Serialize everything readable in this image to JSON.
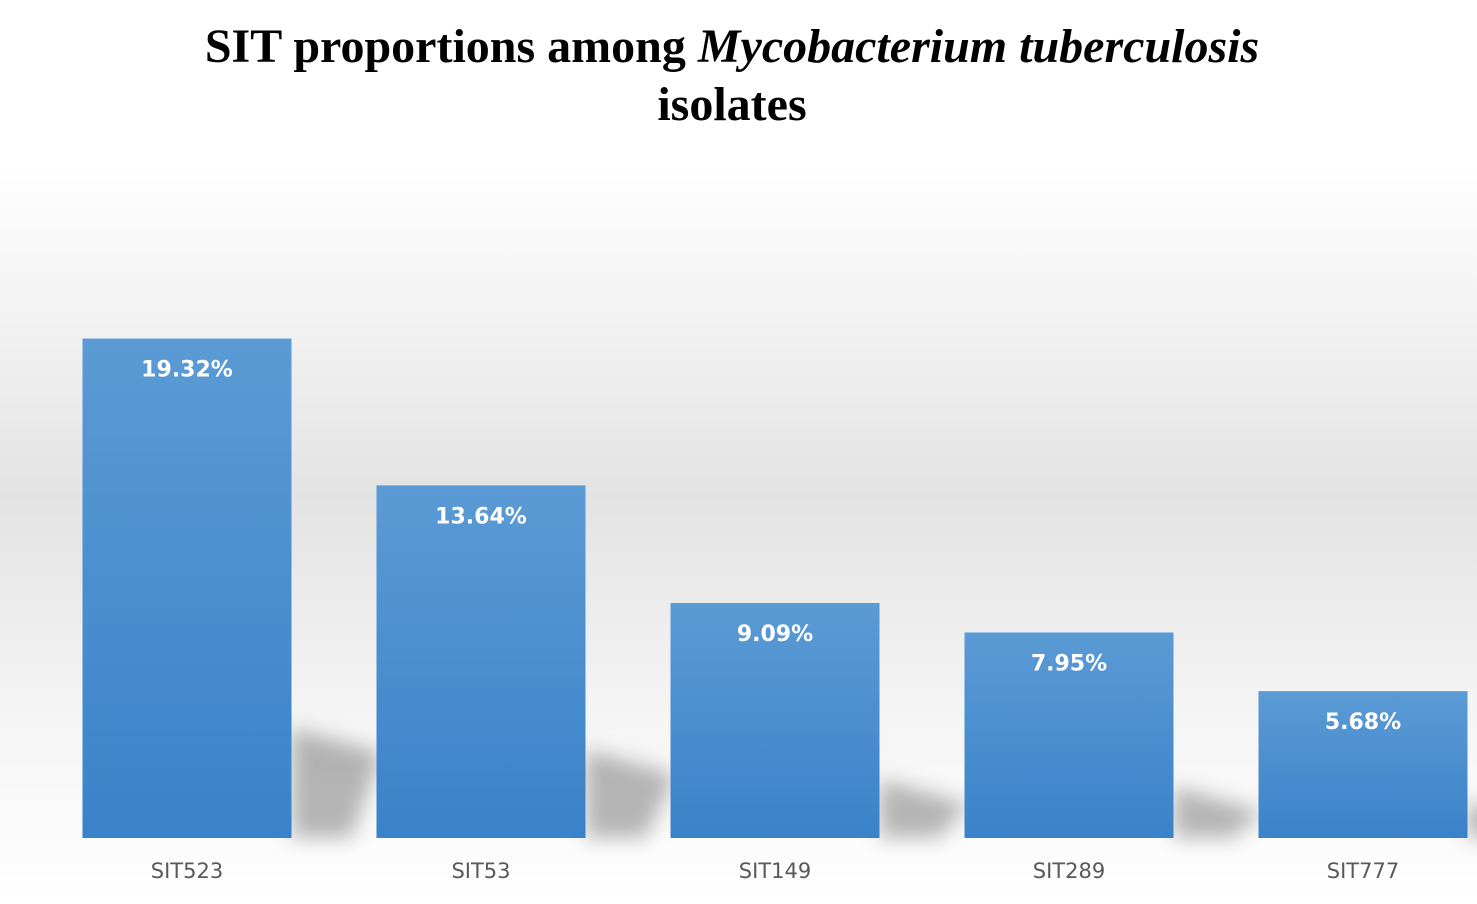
{
  "chart_data": {
    "type": "bar",
    "title": "SIT proportions among Mycobacterium tuberculosis isolates",
    "title_parts": {
      "line1_prefix": "SIT proportions among ",
      "line1_italic": "Mycobacterium tuberculosis",
      "line2": "isolates"
    },
    "categories": [
      "SIT523",
      "SIT53",
      "SIT149",
      "SIT289",
      "SIT777"
    ],
    "values": [
      19.32,
      13.64,
      9.09,
      7.95,
      5.68
    ],
    "data_labels": [
      "19.32%",
      "13.64%",
      "9.09%",
      "7.95%",
      "5.68%"
    ],
    "xlabel": "",
    "ylabel": "",
    "ylim": [
      0,
      27
    ],
    "grid": false,
    "legend": "none",
    "colors": {
      "bar_top": "#5b9bd5",
      "bar_bottom": "#3a82c9",
      "data_label": "#ffffff",
      "tick_label": "#595959",
      "title": "#000000"
    }
  }
}
